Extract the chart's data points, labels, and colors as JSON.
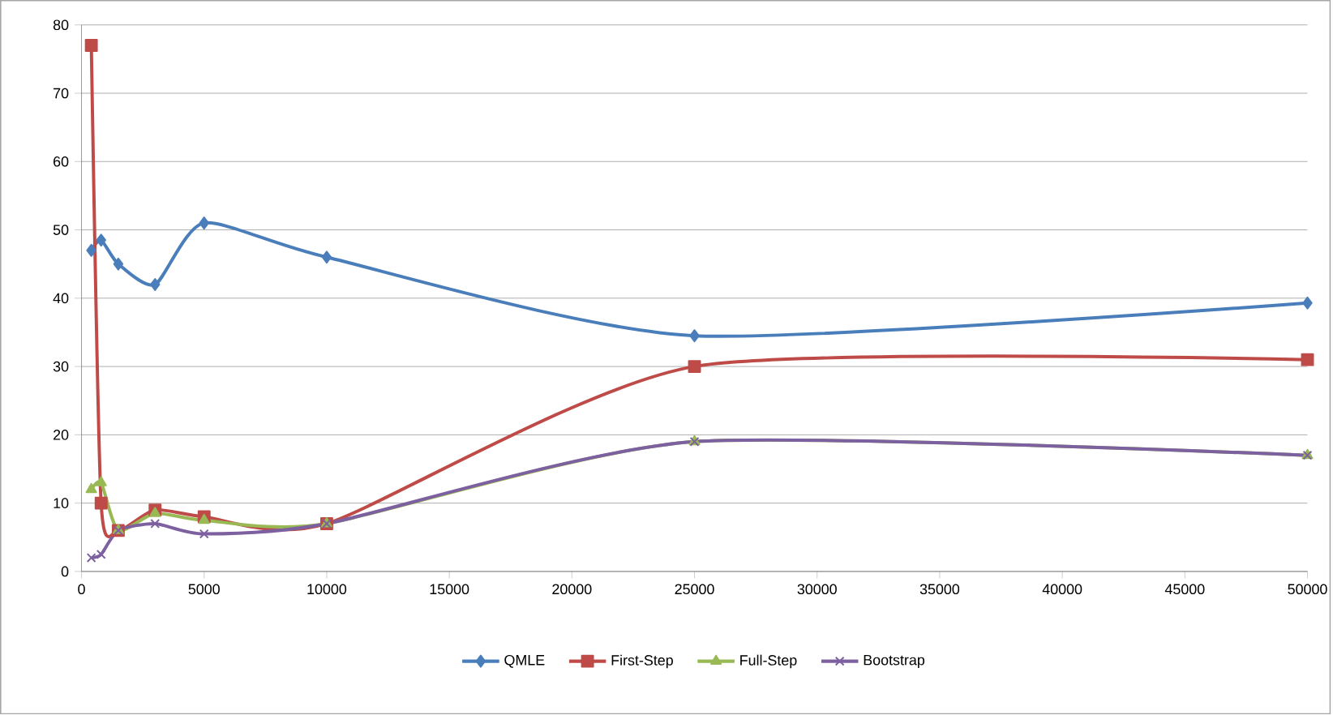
{
  "chart_data": {
    "type": "line",
    "x": [
      400,
      800,
      1500,
      3000,
      5000,
      10000,
      25000,
      50000
    ],
    "series": [
      {
        "name": "QMLE",
        "color": "#4a7ebb",
        "marker": "diamond",
        "values": [
          47,
          48.5,
          45,
          42,
          51,
          46,
          34.5,
          39.3
        ]
      },
      {
        "name": "First-Step",
        "color": "#be4b48",
        "marker": "square",
        "values": [
          77,
          10,
          6,
          9,
          8,
          7,
          30,
          31
        ]
      },
      {
        "name": "Full-Step",
        "color": "#98b954",
        "marker": "triangle",
        "values": [
          12,
          13,
          6,
          8.5,
          7.5,
          7,
          19,
          17
        ]
      },
      {
        "name": "Bootstrap",
        "color": "#7d60a0",
        "marker": "cross",
        "values": [
          2,
          2.5,
          6,
          7,
          5.5,
          7,
          19,
          17
        ]
      }
    ],
    "xlim": [
      0,
      50000
    ],
    "xticks": [
      0,
      5000,
      10000,
      15000,
      20000,
      25000,
      30000,
      35000,
      40000,
      45000,
      50000
    ],
    "ylim": [
      0,
      80
    ],
    "yticks": [
      0,
      10,
      20,
      30,
      40,
      50,
      60,
      70,
      80
    ],
    "grid": "y",
    "legend": "bottom",
    "line_style": "solid"
  }
}
